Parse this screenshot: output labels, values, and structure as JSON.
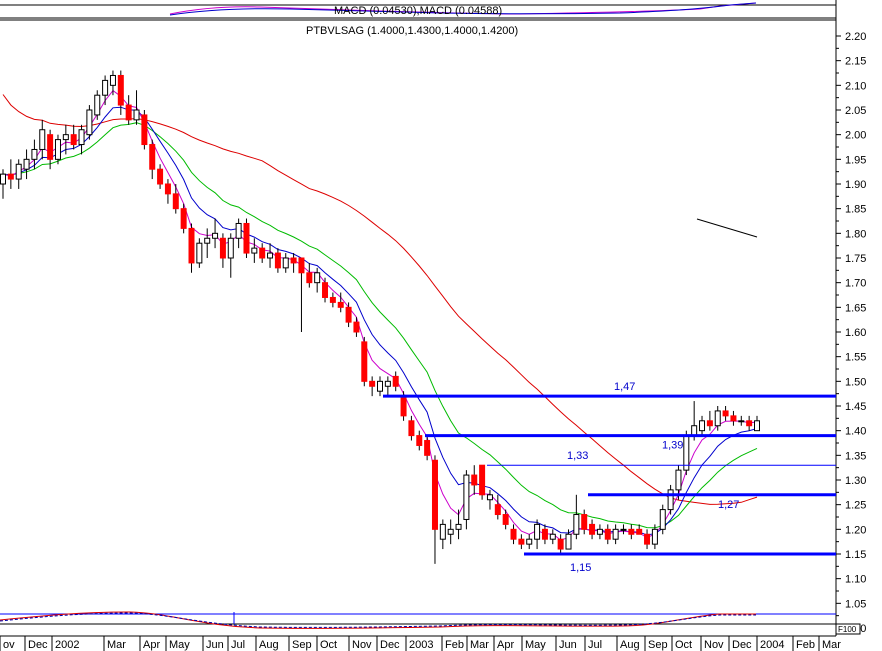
{
  "colors": {
    "candle_up": "#ffffff",
    "candle_down": "#ff0000",
    "wick": "#000000",
    "ma_fast": "#0000cc",
    "ma_pink": "#cc00cc",
    "ma_green": "#00bb00",
    "ma_red": "#dd0000",
    "level_line": "#0000ff",
    "level_text": "#0000cc",
    "axis": "#000000"
  },
  "header": {
    "top_panel_label": "MACD (0.04530),MACD (0.04588)",
    "price_panel_label": "PTBVLSAG (1.4000,1.4300,1.4000,1.4200)"
  },
  "chart_data": {
    "type": "candlestick",
    "title": "PTBVLSAG (1.4000,1.4300,1.4000,1.4200)",
    "y_ticks": [
      "2.20",
      "2.15",
      "2.10",
      "2.05",
      "2.00",
      "1.95",
      "1.90",
      "1.85",
      "1.80",
      "1.75",
      "1.70",
      "1.65",
      "1.60",
      "1.55",
      "1.50",
      "1.45",
      "1.40",
      "1.35",
      "1.30",
      "1.25",
      "1.20",
      "1.15",
      "1.10",
      "1.05",
      "1.00"
    ],
    "ylim": [
      1.0,
      2.2
    ],
    "x_ticks": [
      "ov",
      "Dec",
      "2002",
      "Mar",
      "Apr",
      "May",
      "Jun",
      "Jul",
      "Aug",
      "Sep",
      "Oct",
      "Nov",
      "Dec",
      "2003",
      "Feb",
      "Mar",
      "Apr",
      "May",
      "Jun",
      "Jul",
      "Aug",
      "Sep",
      "Oct",
      "Nov",
      "Dec",
      "2004",
      "Feb",
      "Mar"
    ],
    "horizontal_levels": [
      {
        "label": "1,47",
        "value": 1.47
      },
      {
        "label": "1,39",
        "value": 1.39
      },
      {
        "label": "1,33",
        "value": 1.33
      },
      {
        "label": "1,27",
        "value": 1.27
      },
      {
        "label": "1,15",
        "value": 1.15
      }
    ],
    "bottom_panel_label": "F100",
    "candles": [
      {
        "o": 1.9,
        "h": 1.93,
        "l": 1.87,
        "c": 1.92
      },
      {
        "o": 1.92,
        "h": 1.95,
        "l": 1.89,
        "c": 1.91
      },
      {
        "o": 1.91,
        "h": 1.95,
        "l": 1.89,
        "c": 1.94
      },
      {
        "o": 1.93,
        "h": 1.97,
        "l": 1.91,
        "c": 1.95
      },
      {
        "o": 1.95,
        "h": 1.99,
        "l": 1.93,
        "c": 1.97
      },
      {
        "o": 1.97,
        "h": 2.03,
        "l": 1.95,
        "c": 2.01
      },
      {
        "o": 2.0,
        "h": 2.01,
        "l": 1.93,
        "c": 1.95
      },
      {
        "o": 1.95,
        "h": 2.0,
        "l": 1.94,
        "c": 1.99
      },
      {
        "o": 1.99,
        "h": 2.02,
        "l": 1.96,
        "c": 2.0
      },
      {
        "o": 2.0,
        "h": 2.02,
        "l": 1.97,
        "c": 1.98
      },
      {
        "o": 1.98,
        "h": 2.02,
        "l": 1.96,
        "c": 2.01
      },
      {
        "o": 2.0,
        "h": 2.06,
        "l": 1.99,
        "c": 2.05
      },
      {
        "o": 2.04,
        "h": 2.09,
        "l": 2.03,
        "c": 2.08
      },
      {
        "o": 2.08,
        "h": 2.12,
        "l": 2.06,
        "c": 2.11
      },
      {
        "o": 2.1,
        "h": 2.13,
        "l": 2.08,
        "c": 2.12
      },
      {
        "o": 2.12,
        "h": 2.13,
        "l": 2.04,
        "c": 2.06
      },
      {
        "o": 2.06,
        "h": 2.08,
        "l": 2.02,
        "c": 2.03
      },
      {
        "o": 2.03,
        "h": 2.09,
        "l": 2.02,
        "c": 2.05
      },
      {
        "o": 2.04,
        "h": 2.05,
        "l": 1.97,
        "c": 1.98
      },
      {
        "o": 1.98,
        "h": 1.99,
        "l": 1.91,
        "c": 1.93
      },
      {
        "o": 1.93,
        "h": 1.94,
        "l": 1.89,
        "c": 1.9
      },
      {
        "o": 1.9,
        "h": 1.91,
        "l": 1.86,
        "c": 1.88
      },
      {
        "o": 1.88,
        "h": 1.9,
        "l": 1.84,
        "c": 1.85
      },
      {
        "o": 1.85,
        "h": 1.86,
        "l": 1.8,
        "c": 1.81
      },
      {
        "o": 1.81,
        "h": 1.82,
        "l": 1.72,
        "c": 1.74
      },
      {
        "o": 1.74,
        "h": 1.79,
        "l": 1.73,
        "c": 1.78
      },
      {
        "o": 1.78,
        "h": 1.81,
        "l": 1.75,
        "c": 1.79
      },
      {
        "o": 1.79,
        "h": 1.83,
        "l": 1.77,
        "c": 1.8
      },
      {
        "o": 1.79,
        "h": 1.8,
        "l": 1.73,
        "c": 1.75
      },
      {
        "o": 1.75,
        "h": 1.8,
        "l": 1.71,
        "c": 1.79
      },
      {
        "o": 1.79,
        "h": 1.83,
        "l": 1.77,
        "c": 1.82
      },
      {
        "o": 1.82,
        "h": 1.83,
        "l": 1.75,
        "c": 1.76
      },
      {
        "o": 1.76,
        "h": 1.79,
        "l": 1.74,
        "c": 1.77
      },
      {
        "o": 1.77,
        "h": 1.78,
        "l": 1.74,
        "c": 1.75
      },
      {
        "o": 1.75,
        "h": 1.78,
        "l": 1.73,
        "c": 1.76
      },
      {
        "o": 1.76,
        "h": 1.77,
        "l": 1.72,
        "c": 1.73
      },
      {
        "o": 1.73,
        "h": 1.76,
        "l": 1.72,
        "c": 1.75
      },
      {
        "o": 1.75,
        "h": 1.76,
        "l": 1.72,
        "c": 1.74
      },
      {
        "o": 1.75,
        "h": 1.75,
        "l": 1.6,
        "c": 1.72
      },
      {
        "o": 1.72,
        "h": 1.74,
        "l": 1.69,
        "c": 1.7
      },
      {
        "o": 1.7,
        "h": 1.73,
        "l": 1.68,
        "c": 1.72
      },
      {
        "o": 1.7,
        "h": 1.71,
        "l": 1.66,
        "c": 1.67
      },
      {
        "o": 1.67,
        "h": 1.68,
        "l": 1.65,
        "c": 1.66
      },
      {
        "o": 1.66,
        "h": 1.68,
        "l": 1.64,
        "c": 1.65
      },
      {
        "o": 1.65,
        "h": 1.66,
        "l": 1.61,
        "c": 1.62
      },
      {
        "o": 1.62,
        "h": 1.63,
        "l": 1.59,
        "c": 1.6
      },
      {
        "o": 1.58,
        "h": 1.59,
        "l": 1.49,
        "c": 1.5
      },
      {
        "o": 1.5,
        "h": 1.51,
        "l": 1.47,
        "c": 1.49
      },
      {
        "o": 1.48,
        "h": 1.51,
        "l": 1.47,
        "c": 1.5
      },
      {
        "o": 1.49,
        "h": 1.51,
        "l": 1.47,
        "c": 1.5
      },
      {
        "o": 1.51,
        "h": 1.52,
        "l": 1.48,
        "c": 1.49
      },
      {
        "o": 1.47,
        "h": 1.48,
        "l": 1.42,
        "c": 1.43
      },
      {
        "o": 1.42,
        "h": 1.43,
        "l": 1.38,
        "c": 1.39
      },
      {
        "o": 1.39,
        "h": 1.4,
        "l": 1.36,
        "c": 1.37
      },
      {
        "o": 1.38,
        "h": 1.39,
        "l": 1.34,
        "c": 1.35
      },
      {
        "o": 1.34,
        "h": 1.35,
        "l": 1.13,
        "c": 1.2
      },
      {
        "o": 1.18,
        "h": 1.22,
        "l": 1.16,
        "c": 1.21
      },
      {
        "o": 1.19,
        "h": 1.22,
        "l": 1.17,
        "c": 1.2
      },
      {
        "o": 1.2,
        "h": 1.24,
        "l": 1.18,
        "c": 1.21
      },
      {
        "o": 1.22,
        "h": 1.32,
        "l": 1.2,
        "c": 1.31
      },
      {
        "o": 1.31,
        "h": 1.33,
        "l": 1.27,
        "c": 1.29
      },
      {
        "o": 1.33,
        "h": 1.33,
        "l": 1.26,
        "c": 1.27
      },
      {
        "o": 1.26,
        "h": 1.28,
        "l": 1.24,
        "c": 1.27
      },
      {
        "o": 1.25,
        "h": 1.27,
        "l": 1.22,
        "c": 1.23
      },
      {
        "o": 1.23,
        "h": 1.24,
        "l": 1.2,
        "c": 1.21
      },
      {
        "o": 1.2,
        "h": 1.21,
        "l": 1.17,
        "c": 1.18
      },
      {
        "o": 1.18,
        "h": 1.19,
        "l": 1.16,
        "c": 1.17
      },
      {
        "o": 1.17,
        "h": 1.19,
        "l": 1.16,
        "c": 1.18
      },
      {
        "o": 1.18,
        "h": 1.22,
        "l": 1.16,
        "c": 1.21
      },
      {
        "o": 1.2,
        "h": 1.21,
        "l": 1.17,
        "c": 1.18
      },
      {
        "o": 1.18,
        "h": 1.2,
        "l": 1.17,
        "c": 1.19
      },
      {
        "o": 1.18,
        "h": 1.19,
        "l": 1.15,
        "c": 1.16
      },
      {
        "o": 1.16,
        "h": 1.2,
        "l": 1.16,
        "c": 1.19
      },
      {
        "o": 1.19,
        "h": 1.27,
        "l": 1.18,
        "c": 1.23
      },
      {
        "o": 1.23,
        "h": 1.24,
        "l": 1.19,
        "c": 1.2
      },
      {
        "o": 1.21,
        "h": 1.22,
        "l": 1.18,
        "c": 1.19
      },
      {
        "o": 1.19,
        "h": 1.21,
        "l": 1.18,
        "c": 1.2
      },
      {
        "o": 1.2,
        "h": 1.21,
        "l": 1.17,
        "c": 1.18
      },
      {
        "o": 1.18,
        "h": 1.21,
        "l": 1.17,
        "c": 1.2
      },
      {
        "o": 1.2,
        "h": 1.21,
        "l": 1.19,
        "c": 1.2
      },
      {
        "o": 1.2,
        "h": 1.21,
        "l": 1.18,
        "c": 1.19
      },
      {
        "o": 1.2,
        "h": 1.21,
        "l": 1.19,
        "c": 1.19
      },
      {
        "o": 1.19,
        "h": 1.2,
        "l": 1.16,
        "c": 1.17
      },
      {
        "o": 1.17,
        "h": 1.21,
        "l": 1.16,
        "c": 1.2
      },
      {
        "o": 1.2,
        "h": 1.25,
        "l": 1.19,
        "c": 1.24
      },
      {
        "o": 1.24,
        "h": 1.29,
        "l": 1.23,
        "c": 1.28
      },
      {
        "o": 1.28,
        "h": 1.33,
        "l": 1.26,
        "c": 1.32
      },
      {
        "o": 1.32,
        "h": 1.4,
        "l": 1.31,
        "c": 1.39
      },
      {
        "o": 1.39,
        "h": 1.46,
        "l": 1.38,
        "c": 1.41
      },
      {
        "o": 1.4,
        "h": 1.43,
        "l": 1.39,
        "c": 1.42
      },
      {
        "o": 1.42,
        "h": 1.44,
        "l": 1.4,
        "c": 1.41
      },
      {
        "o": 1.41,
        "h": 1.45,
        "l": 1.4,
        "c": 1.44
      },
      {
        "o": 1.44,
        "h": 1.45,
        "l": 1.42,
        "c": 1.43
      },
      {
        "o": 1.43,
        "h": 1.44,
        "l": 1.41,
        "c": 1.42
      },
      {
        "o": 1.42,
        "h": 1.43,
        "l": 1.41,
        "c": 1.42
      },
      {
        "o": 1.42,
        "h": 1.43,
        "l": 1.4,
        "c": 1.41
      },
      {
        "o": 1.4,
        "h": 1.43,
        "l": 1.4,
        "c": 1.42
      }
    ]
  }
}
